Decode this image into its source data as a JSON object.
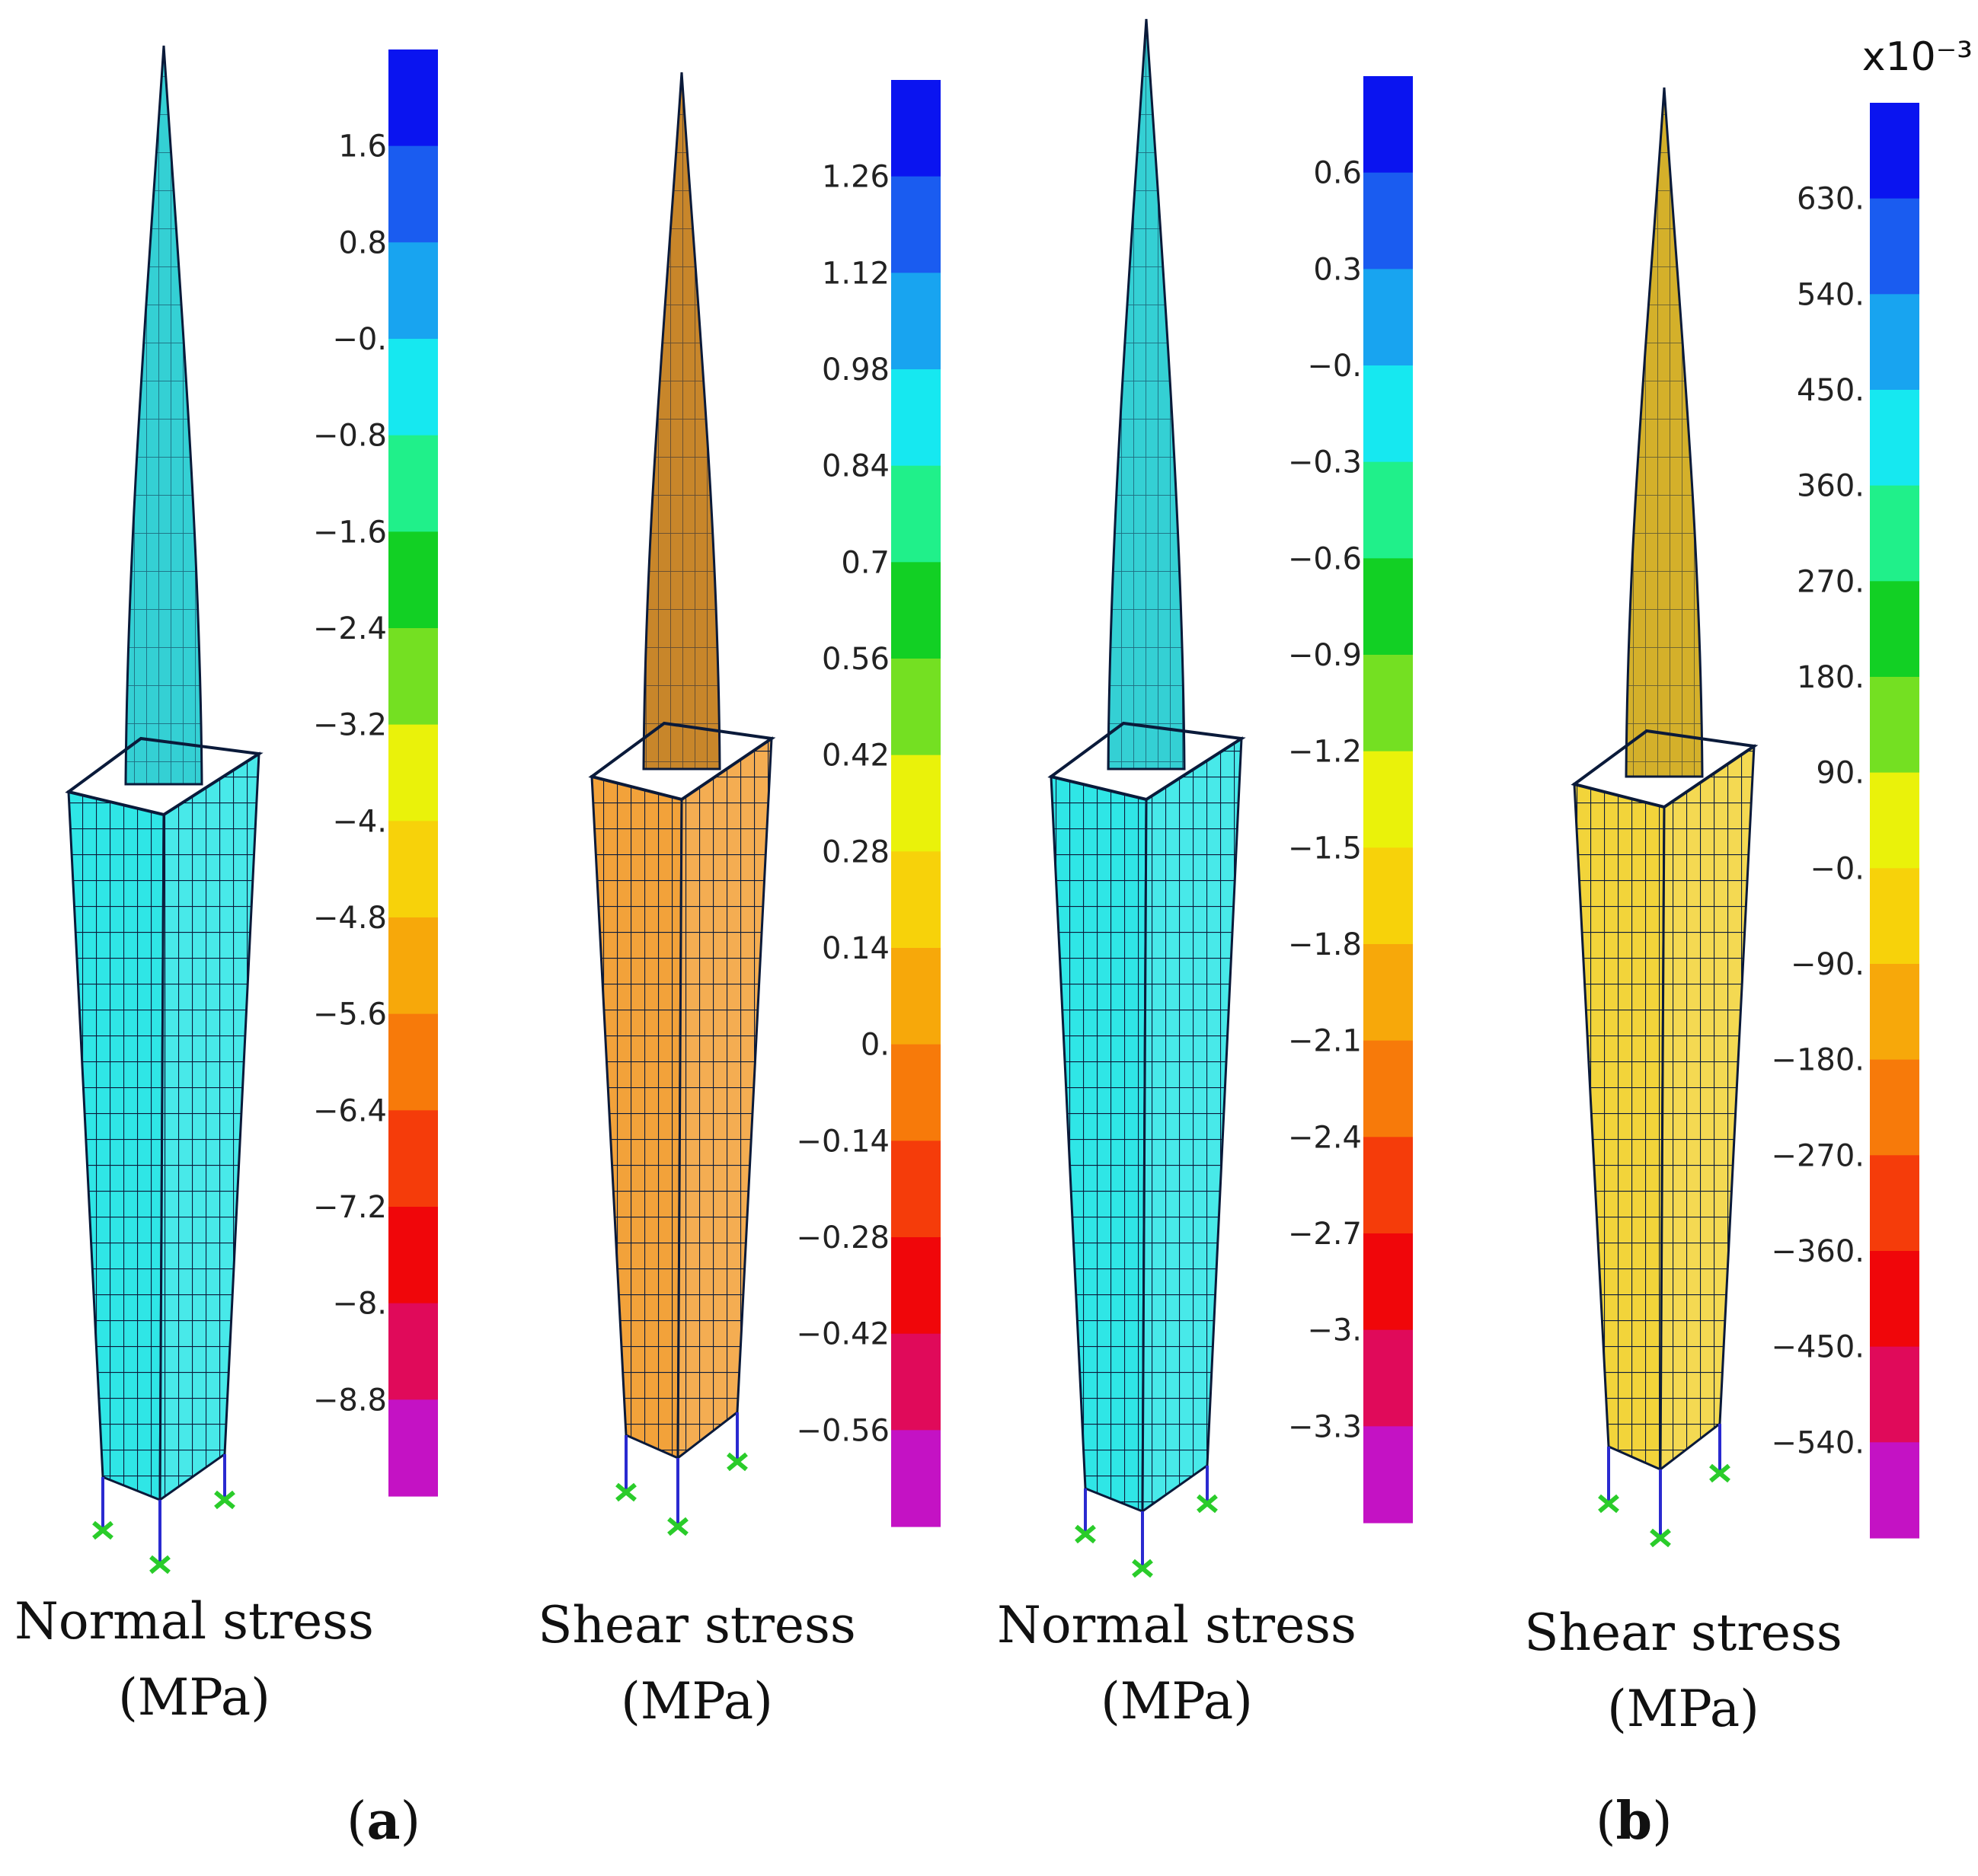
{
  "panels": [
    {
      "id": "a-normal",
      "caption_line1": "Normal stress",
      "caption_line2": "(MPa)",
      "exponent": "",
      "ticks": [
        "1.6",
        "0.8",
        "−0.",
        "−0.8",
        "−1.6",
        "−2.4",
        "−3.2",
        "−4.",
        "−4.8",
        "−5.6",
        "−6.4",
        "−7.2",
        "−8.",
        "−8.8"
      ],
      "body_color": "#2fe6e6",
      "spire_color": "#34d0d4"
    },
    {
      "id": "a-shear",
      "caption_line1": "Shear stress",
      "caption_line2": "(MPa)",
      "exponent": "",
      "ticks": [
        "1.26",
        "1.12",
        "0.98",
        "0.84",
        "0.7",
        "0.56",
        "0.42",
        "0.28",
        "0.14",
        "0.",
        "−0.14",
        "−0.28",
        "−0.42",
        "−0.56"
      ],
      "body_color": "#f2a23a",
      "spire_color": "#c8862a"
    },
    {
      "id": "b-normal",
      "caption_line1": "Normal stress",
      "caption_line2": "(MPa)",
      "exponent": "",
      "ticks": [
        "0.6",
        "0.3",
        "−0.",
        "−0.3",
        "−0.6",
        "−0.9",
        "−1.2",
        "−1.5",
        "−1.8",
        "−2.1",
        "−2.4",
        "−2.7",
        "−3.",
        "−3.3"
      ],
      "body_color": "#2fe6e6",
      "spire_color": "#34d0d4"
    },
    {
      "id": "b-shear",
      "caption_line1": "Shear stress",
      "caption_line2": "(MPa)",
      "exponent": "x10⁻³",
      "ticks": [
        "630.",
        "540.",
        "450.",
        "360.",
        "270.",
        "180.",
        "90.",
        "−0.",
        "−90.",
        "−180.",
        "−270.",
        "−360.",
        "−450.",
        "−540."
      ],
      "body_color": "#f2d43a",
      "spire_color": "#d4b02a"
    }
  ],
  "colorbar_colors": [
    "#0a14f0",
    "#1a5cf0",
    "#18a4f0",
    "#16e8f0",
    "#20f08a",
    "#12d024",
    "#74e022",
    "#eaf20a",
    "#f7d20a",
    "#f7a80a",
    "#f77a0a",
    "#f53c0a",
    "#f0060a",
    "#e00a5a",
    "#c412c4"
  ],
  "subfigure_labels": [
    "a",
    "b"
  ]
}
